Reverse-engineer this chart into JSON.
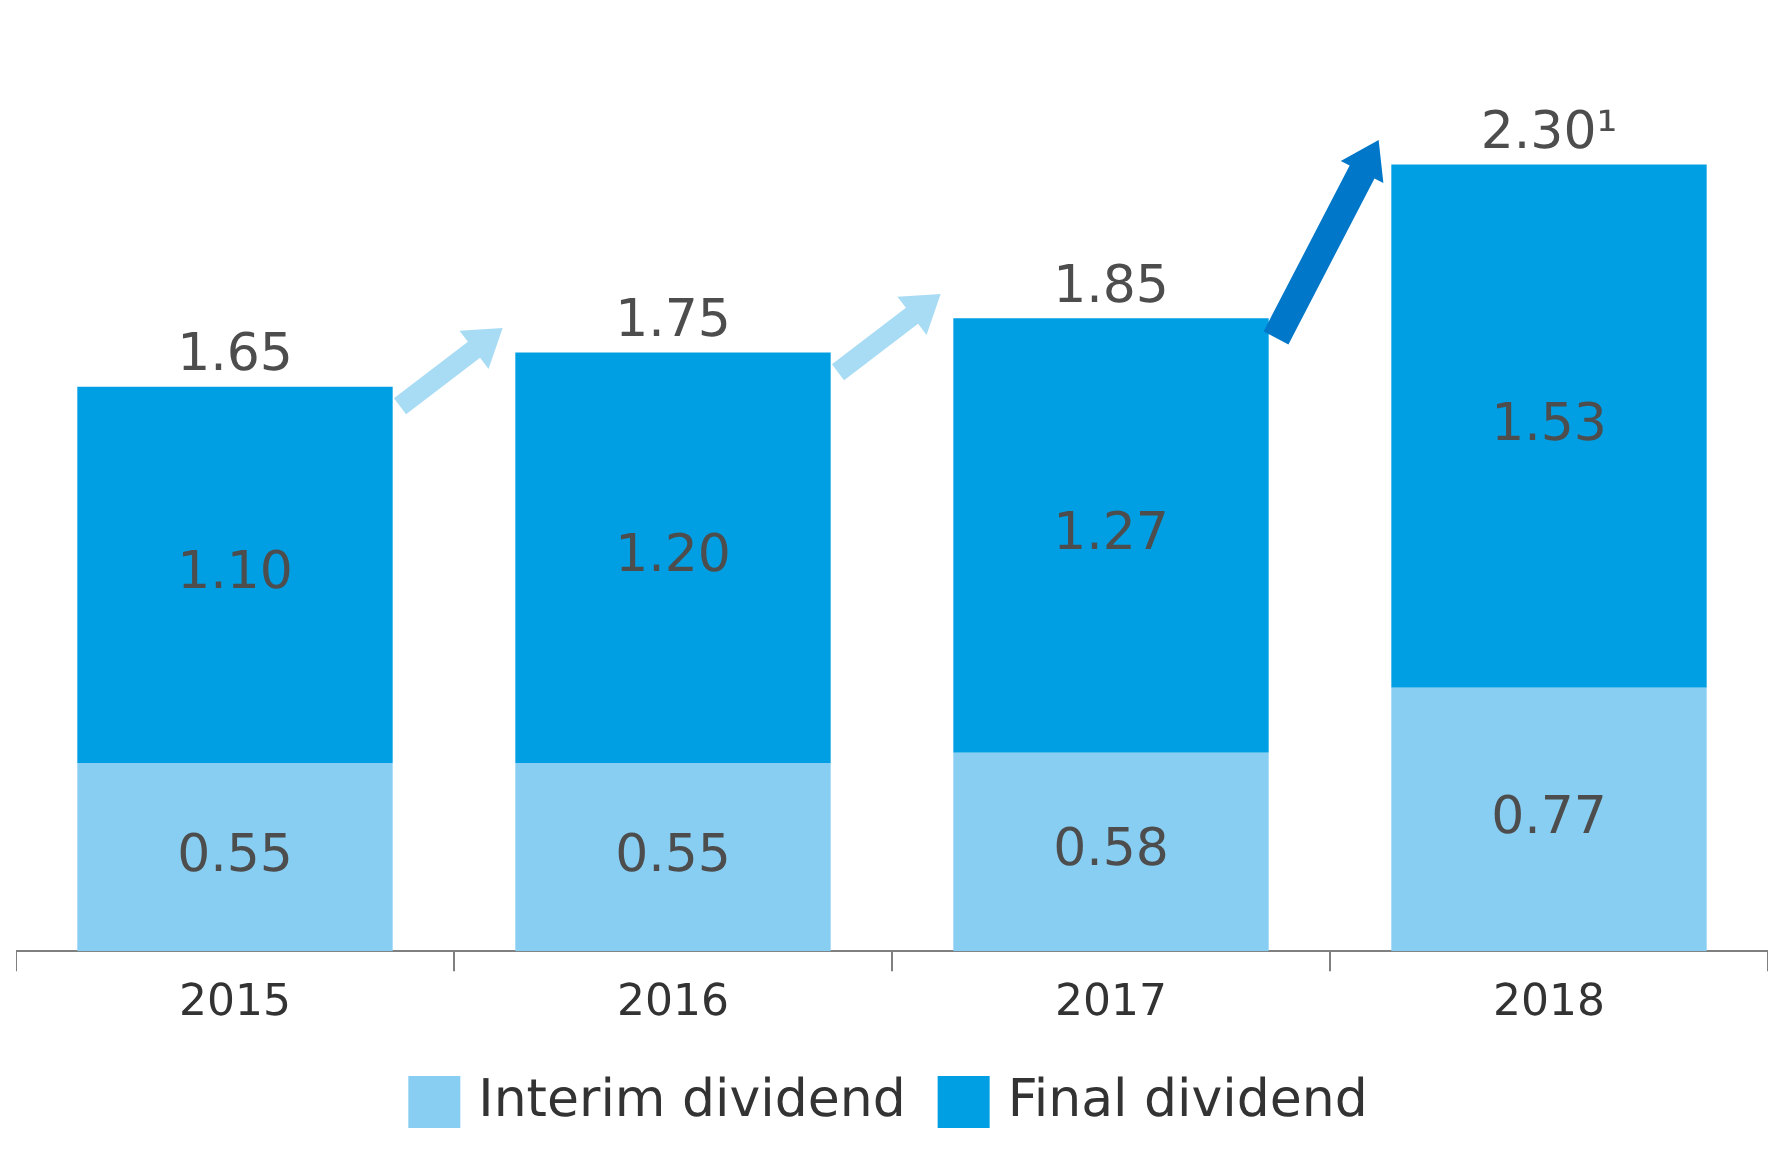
{
  "chart_data": {
    "type": "bar",
    "stacked": true,
    "categories": [
      "2015",
      "2016",
      "2017",
      "2018"
    ],
    "series": [
      {
        "name": "Interim dividend",
        "color": "#87cef2",
        "values": [
          0.55,
          0.55,
          0.58,
          0.77
        ],
        "value_labels": [
          "0.55",
          "0.55",
          "0.58",
          "0.77"
        ]
      },
      {
        "name": "Final dividend",
        "color": "#009fe3",
        "values": [
          1.1,
          1.2,
          1.27,
          1.53
        ],
        "value_labels": [
          "1.10",
          "1.20",
          "1.27",
          "1.53"
        ]
      }
    ],
    "totals": [
      "1.65",
      "1.75",
      "1.85",
      "2.30¹"
    ],
    "legend": "bottom",
    "grid": false
  }
}
